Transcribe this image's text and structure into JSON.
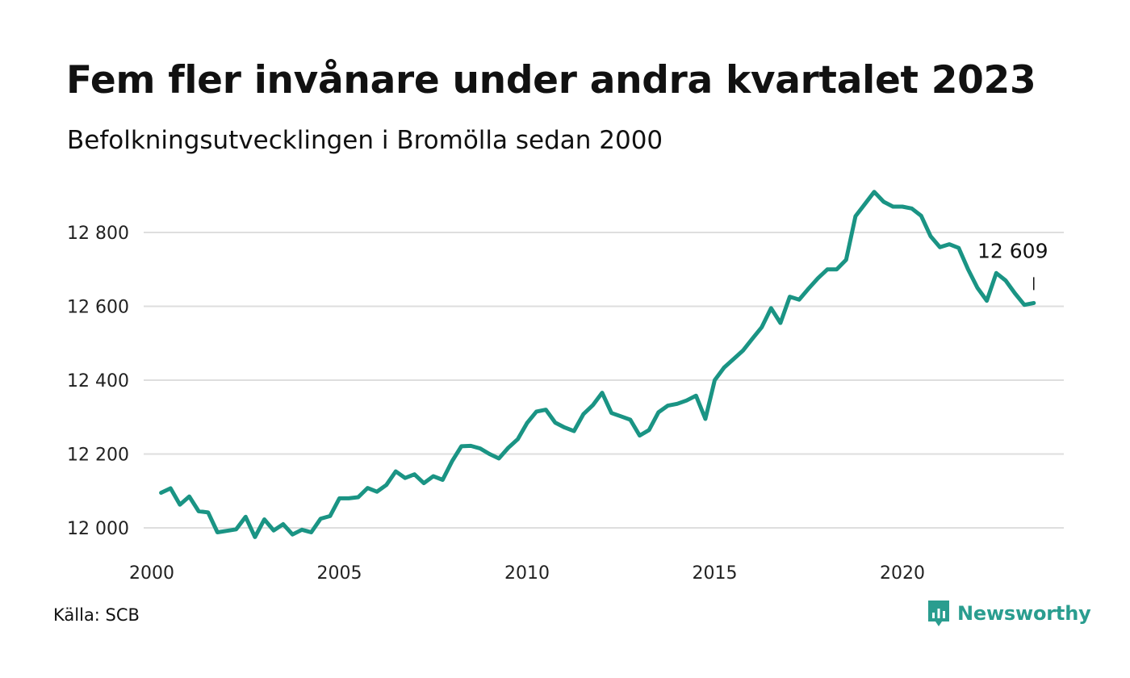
{
  "title": "Fem fler invånare under andra kvartalet 2023",
  "subtitle": "Befolkningsutvecklingen i Bromölla sedan 2000",
  "source": "Källa: SCB",
  "brand": {
    "name": "Newsworthy",
    "color": "#2a9d8f"
  },
  "chart_data": {
    "type": "line",
    "xlabel": "",
    "ylabel": "",
    "xlim": [
      2000,
      2024
    ],
    "ylim": [
      11960,
      12920
    ],
    "grid": true,
    "line_color": "#1a9484",
    "x_ticks": [
      {
        "value": 2000,
        "label": "2000"
      },
      {
        "value": 2005,
        "label": "2005"
      },
      {
        "value": 2010,
        "label": "2010"
      },
      {
        "value": 2015,
        "label": "2015"
      },
      {
        "value": 2020,
        "label": "2020"
      }
    ],
    "y_ticks": [
      {
        "value": 12000,
        "label": "12 000"
      },
      {
        "value": 12200,
        "label": "12 200"
      },
      {
        "value": 12400,
        "label": "12 400"
      },
      {
        "value": 12600,
        "label": "12 600"
      },
      {
        "value": 12800,
        "label": "12 800"
      }
    ],
    "annotation": {
      "x": 2023.5,
      "y": 12609,
      "label": "12 609"
    },
    "series": [
      {
        "x": [
          2000.25,
          2000.5,
          2000.75,
          2001,
          2001.25,
          2001.5,
          2001.75,
          2002,
          2002.25,
          2002.5,
          2002.75,
          2003,
          2003.25,
          2003.5,
          2003.75,
          2004,
          2004.25,
          2004.5,
          2004.75,
          2005,
          2005.25,
          2005.5,
          2005.75,
          2006,
          2006.25,
          2006.5,
          2006.75,
          2007,
          2007.25,
          2007.5,
          2007.75,
          2008,
          2008.25,
          2008.5,
          2008.75,
          2009,
          2009.25,
          2009.5,
          2009.75,
          2010,
          2010.25,
          2010.5,
          2010.75,
          2011,
          2011.25,
          2011.5,
          2011.75,
          2012,
          2012.25,
          2012.5,
          2012.75,
          2013,
          2013.25,
          2013.5,
          2013.75,
          2014,
          2014.25,
          2014.5,
          2014.75,
          2015,
          2015.25,
          2015.5,
          2015.75,
          2016,
          2016.25,
          2016.5,
          2016.75,
          2017,
          2017.25,
          2017.5,
          2017.75,
          2018,
          2018.25,
          2018.5,
          2018.75,
          2019,
          2019.25,
          2019.5,
          2019.75,
          2020,
          2020.25,
          2020.5,
          2020.75,
          2021,
          2021.25,
          2021.5,
          2021.75,
          2022,
          2022.25,
          2022.5,
          2022.75,
          2023,
          2023.25,
          2023.5
        ],
        "y": [
          12095,
          12107,
          12063,
          12085,
          12045,
          12042,
          11988,
          11992,
          11996,
          12030,
          11975,
          12023,
          11993,
          12010,
          11982,
          11995,
          11988,
          12025,
          12032,
          12080,
          12080,
          12083,
          12108,
          12098,
          12116,
          12153,
          12135,
          12145,
          12121,
          12140,
          12130,
          12180,
          12221,
          12222,
          12215,
          12200,
          12188,
          12217,
          12240,
          12284,
          12315,
          12320,
          12285,
          12272,
          12262,
          12308,
          12332,
          12366,
          12311,
          12302,
          12293,
          12250,
          12265,
          12313,
          12331,
          12336,
          12345,
          12358,
          12295,
          12400,
          12434,
          12457,
          12480,
          12512,
          12543,
          12595,
          12555,
          12626,
          12618,
          12648,
          12676,
          12700,
          12700,
          12726,
          12844,
          12877,
          12910,
          12883,
          12870,
          12870,
          12865,
          12845,
          12790,
          12760,
          12768,
          12758,
          12700,
          12650,
          12615,
          12690,
          12670,
          12635,
          12604,
          12609
        ]
      }
    ]
  }
}
